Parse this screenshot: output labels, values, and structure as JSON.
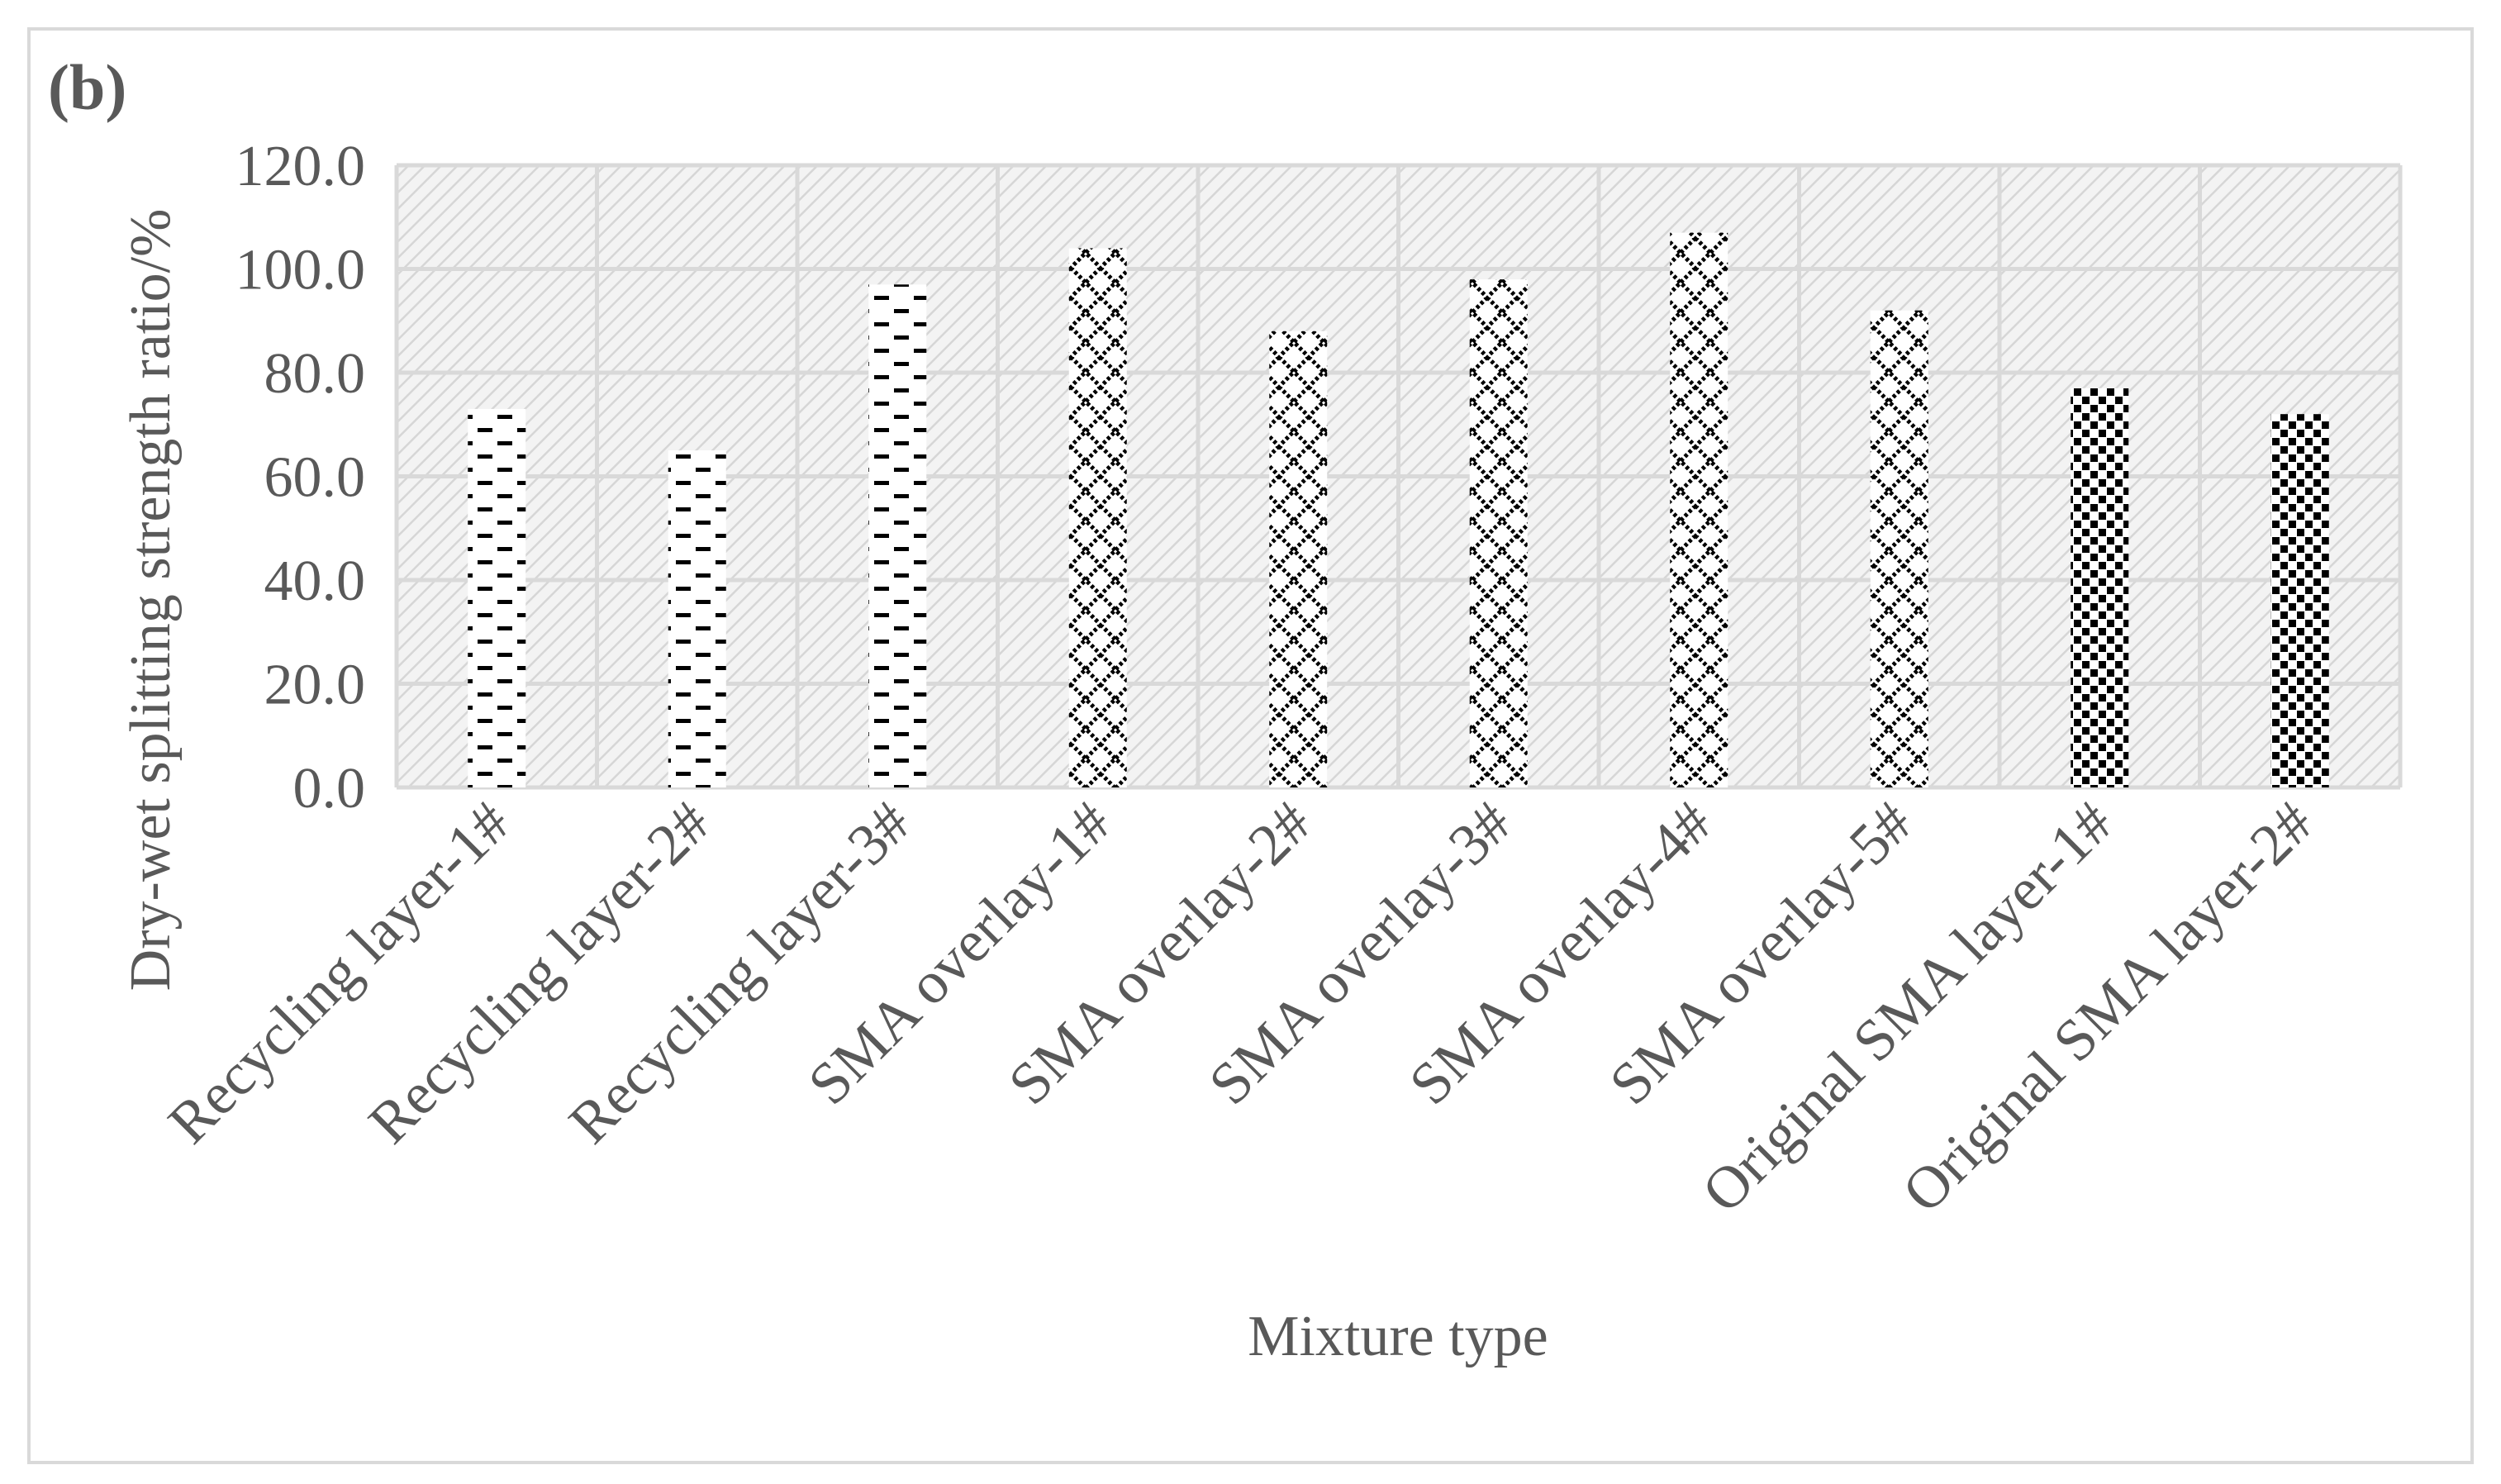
{
  "chart_data": {
    "type": "bar",
    "label": "(b)",
    "x_label": "Mixture type",
    "y_label": "Dry-wet splitting strength ratio/%",
    "categories": [
      "Recycling layer-1#",
      "Recycling layer-2#",
      "Recycling layer-3#",
      "SMA overlay-1#",
      "SMA overlay-2#",
      "SMA overlay-3#",
      "SMA overlay-4#",
      "SMA overlay-5#",
      "Original SMA layer-1#",
      "Original SMA layer-2#"
    ],
    "values": [
      73,
      65,
      97,
      104,
      88,
      98,
      107,
      92,
      77,
      72
    ],
    "patterns": [
      "dash",
      "dash",
      "dash",
      "cross",
      "cross",
      "cross",
      "cross",
      "cross",
      "dots",
      "dots"
    ],
    "color": "#000000",
    "ylim": [
      0,
      120
    ],
    "yticks": [
      {
        "value": 0,
        "label": "0.0"
      },
      {
        "value": 20,
        "label": "20.0"
      },
      {
        "value": 40,
        "label": "40.0"
      },
      {
        "value": 60,
        "label": "60.0"
      },
      {
        "value": 80,
        "label": "80.0"
      },
      {
        "value": 100,
        "label": "100.0"
      },
      {
        "value": 120,
        "label": "120.0"
      }
    ],
    "grid": true
  }
}
